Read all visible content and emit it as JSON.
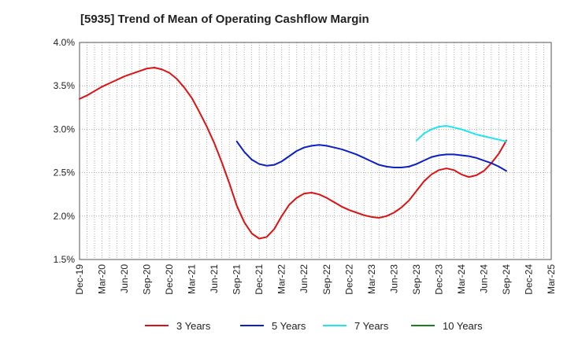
{
  "chart_data": {
    "type": "line",
    "title": "[5935]  Trend of Mean of Operating Cashflow Margin",
    "xlabel": "",
    "ylabel": "",
    "ylim": [
      1.5,
      4.0
    ],
    "yticks": [
      "1.5%",
      "2.0%",
      "2.5%",
      "3.0%",
      "3.5%",
      "4.0%"
    ],
    "ytick_values": [
      1.5,
      2.0,
      2.5,
      3.0,
      3.5,
      4.0
    ],
    "xticks": [
      "Dec-19",
      "Mar-20",
      "Jun-20",
      "Sep-20",
      "Dec-20",
      "Mar-21",
      "Jun-21",
      "Sep-21",
      "Dec-21",
      "Mar-22",
      "Jun-22",
      "Sep-22",
      "Dec-22",
      "Mar-23",
      "Jun-23",
      "Sep-23",
      "Dec-23",
      "Mar-24",
      "Jun-24",
      "Sep-24",
      "Dec-24",
      "Mar-25"
    ],
    "grid": true,
    "legend_position": "bottom",
    "series": [
      {
        "name": "3 Years",
        "color": "#dd1111",
        "x": [
          "Dec-19",
          "Jan-20",
          "Feb-20",
          "Mar-20",
          "Apr-20",
          "May-20",
          "Jun-20",
          "Jul-20",
          "Aug-20",
          "Sep-20",
          "Oct-20",
          "Nov-20",
          "Dec-20",
          "Jan-21",
          "Feb-21",
          "Mar-21",
          "Apr-21",
          "May-21",
          "Jun-21",
          "Jul-21",
          "Aug-21",
          "Sep-21",
          "Oct-21",
          "Nov-21",
          "Dec-21",
          "Jan-22",
          "Feb-22",
          "Mar-22",
          "Apr-22",
          "May-22",
          "Jun-22",
          "Jul-22",
          "Aug-22",
          "Sep-22",
          "Oct-22",
          "Nov-22",
          "Dec-22",
          "Jan-23",
          "Feb-23",
          "Mar-23",
          "Apr-23",
          "May-23",
          "Jun-23",
          "Jul-23",
          "Aug-23",
          "Sep-23",
          "Oct-23",
          "Nov-23",
          "Dec-23",
          "Jan-24",
          "Feb-24",
          "Mar-24",
          "Apr-24",
          "May-24",
          "Jun-24",
          "Jul-24",
          "Aug-24",
          "Sep-24"
        ],
        "values": [
          3.35,
          3.39,
          3.44,
          3.49,
          3.53,
          3.57,
          3.61,
          3.64,
          3.67,
          3.7,
          3.71,
          3.69,
          3.65,
          3.58,
          3.48,
          3.36,
          3.2,
          3.03,
          2.84,
          2.62,
          2.38,
          2.12,
          1.93,
          1.8,
          1.74,
          1.76,
          1.85,
          2.0,
          2.13,
          2.21,
          2.26,
          2.27,
          2.25,
          2.21,
          2.16,
          2.11,
          2.07,
          2.04,
          2.01,
          1.99,
          1.98,
          2.0,
          2.04,
          2.1,
          2.18,
          2.29,
          2.4,
          2.48,
          2.53,
          2.55,
          2.53,
          2.48,
          2.45,
          2.47,
          2.52,
          2.61,
          2.72,
          2.87
        ]
      },
      {
        "name": "5 Years",
        "color": "#0a1fc4",
        "x": [
          "Sep-21",
          "Oct-21",
          "Nov-21",
          "Dec-21",
          "Jan-22",
          "Feb-22",
          "Mar-22",
          "Apr-22",
          "May-22",
          "Jun-22",
          "Jul-22",
          "Aug-22",
          "Sep-22",
          "Oct-22",
          "Nov-22",
          "Dec-22",
          "Jan-23",
          "Feb-23",
          "Mar-23",
          "Apr-23",
          "May-23",
          "Jun-23",
          "Jul-23",
          "Aug-23",
          "Sep-23",
          "Oct-23",
          "Nov-23",
          "Dec-23",
          "Jan-24",
          "Feb-24",
          "Mar-24",
          "Apr-24",
          "May-24",
          "Jun-24",
          "Jul-24",
          "Aug-24",
          "Sep-24"
        ],
        "values": [
          2.86,
          2.74,
          2.65,
          2.6,
          2.58,
          2.59,
          2.63,
          2.69,
          2.75,
          2.79,
          2.81,
          2.82,
          2.81,
          2.79,
          2.77,
          2.74,
          2.71,
          2.67,
          2.63,
          2.59,
          2.57,
          2.56,
          2.56,
          2.57,
          2.6,
          2.64,
          2.68,
          2.7,
          2.71,
          2.71,
          2.7,
          2.69,
          2.67,
          2.64,
          2.61,
          2.57,
          2.52
        ]
      },
      {
        "name": "7 Years",
        "color": "#22e4ee",
        "x": [
          "Sep-23",
          "Oct-23",
          "Nov-23",
          "Dec-23",
          "Jan-24",
          "Feb-24",
          "Mar-24",
          "Apr-24",
          "May-24",
          "Jun-24",
          "Jul-24",
          "Aug-24",
          "Sep-24"
        ],
        "values": [
          2.87,
          2.95,
          3.0,
          3.03,
          3.04,
          3.02,
          3.0,
          2.97,
          2.94,
          2.92,
          2.9,
          2.88,
          2.86
        ]
      },
      {
        "name": "10 Years",
        "color": "#1e7f1e",
        "x": [],
        "values": []
      }
    ]
  }
}
